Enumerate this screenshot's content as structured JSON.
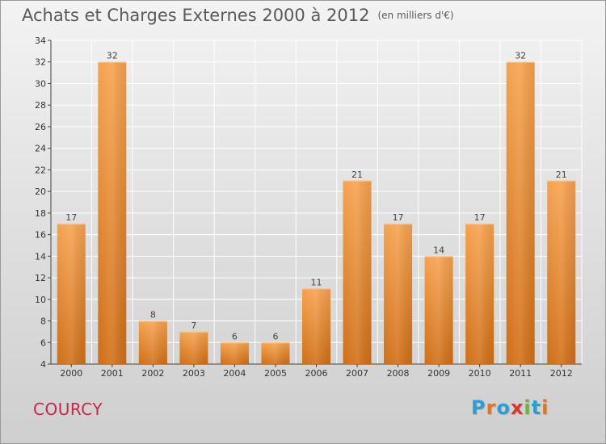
{
  "title": "Achats et Charges Externes 2000 à 2012",
  "unit": "(en milliers d'€)",
  "commune": "COURCY",
  "logo": {
    "letters": [
      "P",
      "r",
      "o",
      "x",
      "i",
      "t",
      "i"
    ],
    "colors": [
      "#2a9fd6",
      "#e8731c",
      "#2a9fd6",
      "#d43a2a",
      "#6fb33a",
      "#2a9fd6",
      "#e8731c"
    ]
  },
  "chart_data": {
    "type": "bar",
    "categories": [
      "2000",
      "2001",
      "2002",
      "2003",
      "2004",
      "2005",
      "2006",
      "2007",
      "2008",
      "2009",
      "2010",
      "2011",
      "2012"
    ],
    "values": [
      17,
      32,
      8,
      7,
      6,
      6,
      11,
      21,
      17,
      14,
      17,
      32,
      21
    ],
    "ylim": [
      4,
      34
    ],
    "yticks": [
      4,
      6,
      8,
      10,
      12,
      14,
      16,
      18,
      20,
      22,
      24,
      26,
      28,
      30,
      32,
      34
    ],
    "grid": true,
    "colors": {
      "bar_top": "#f6a24e",
      "bar_bottom": "#d06e16",
      "grid": "#ffffff"
    }
  }
}
